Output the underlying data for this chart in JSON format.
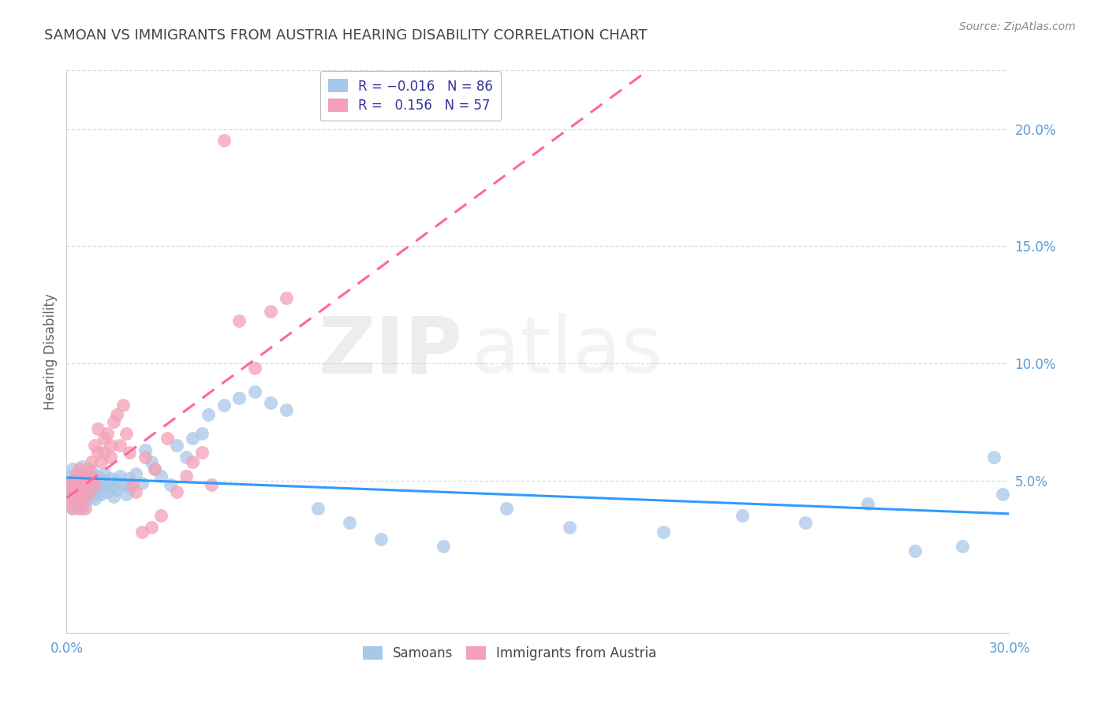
{
  "title": "SAMOAN VS IMMIGRANTS FROM AUSTRIA HEARING DISABILITY CORRELATION CHART",
  "source": "Source: ZipAtlas.com",
  "ylabel": "Hearing Disability",
  "right_ytick_labels": [
    "20.0%",
    "15.0%",
    "10.0%",
    "5.0%"
  ],
  "right_ytick_vals": [
    0.2,
    0.15,
    0.1,
    0.05
  ],
  "xlim": [
    0.0,
    0.3
  ],
  "ylim": [
    -0.015,
    0.225
  ],
  "samoans_color": "#a8c8e8",
  "austria_color": "#f4a0b8",
  "samoans_line_color": "#3399ff",
  "austria_line_color": "#ff6699",
  "samoans_R": -0.016,
  "samoans_N": 86,
  "austria_R": 0.156,
  "austria_N": 57,
  "legend_label_samoans": "Samoans",
  "legend_label_austria": "Immigrants from Austria",
  "watermark_zip": "ZIP",
  "watermark_atlas": "atlas",
  "background_color": "#ffffff",
  "grid_color": "#dddddd",
  "title_color": "#444444",
  "axis_label_color": "#5b9bd5",
  "ylabel_color": "#666666",
  "samoans_x": [
    0.001,
    0.001,
    0.001,
    0.002,
    0.002,
    0.002,
    0.002,
    0.002,
    0.003,
    0.003,
    0.003,
    0.003,
    0.003,
    0.004,
    0.004,
    0.004,
    0.004,
    0.005,
    0.005,
    0.005,
    0.005,
    0.005,
    0.006,
    0.006,
    0.006,
    0.006,
    0.007,
    0.007,
    0.007,
    0.008,
    0.008,
    0.008,
    0.008,
    0.009,
    0.009,
    0.009,
    0.01,
    0.01,
    0.01,
    0.011,
    0.011,
    0.012,
    0.012,
    0.013,
    0.013,
    0.014,
    0.015,
    0.015,
    0.016,
    0.016,
    0.017,
    0.018,
    0.019,
    0.02,
    0.02,
    0.022,
    0.024,
    0.025,
    0.027,
    0.028,
    0.03,
    0.033,
    0.035,
    0.038,
    0.04,
    0.043,
    0.045,
    0.05,
    0.055,
    0.06,
    0.065,
    0.07,
    0.08,
    0.09,
    0.1,
    0.12,
    0.14,
    0.16,
    0.19,
    0.215,
    0.235,
    0.255,
    0.27,
    0.285,
    0.295,
    0.298
  ],
  "samoans_y": [
    0.048,
    0.052,
    0.044,
    0.05,
    0.046,
    0.042,
    0.038,
    0.055,
    0.047,
    0.043,
    0.051,
    0.049,
    0.045,
    0.053,
    0.041,
    0.048,
    0.044,
    0.05,
    0.046,
    0.042,
    0.056,
    0.038,
    0.049,
    0.045,
    0.052,
    0.041,
    0.048,
    0.044,
    0.051,
    0.047,
    0.043,
    0.05,
    0.054,
    0.046,
    0.042,
    0.049,
    0.045,
    0.052,
    0.048,
    0.044,
    0.05,
    0.047,
    0.053,
    0.049,
    0.045,
    0.051,
    0.047,
    0.043,
    0.05,
    0.046,
    0.052,
    0.048,
    0.044,
    0.051,
    0.047,
    0.053,
    0.049,
    0.063,
    0.058,
    0.055,
    0.052,
    0.048,
    0.065,
    0.06,
    0.068,
    0.07,
    0.078,
    0.082,
    0.085,
    0.088,
    0.083,
    0.08,
    0.038,
    0.032,
    0.025,
    0.022,
    0.038,
    0.03,
    0.028,
    0.035,
    0.032,
    0.04,
    0.02,
    0.022,
    0.06,
    0.044
  ],
  "austria_x": [
    0.001,
    0.001,
    0.002,
    0.002,
    0.002,
    0.003,
    0.003,
    0.003,
    0.003,
    0.004,
    0.004,
    0.004,
    0.005,
    0.005,
    0.005,
    0.006,
    0.006,
    0.006,
    0.007,
    0.007,
    0.007,
    0.008,
    0.008,
    0.009,
    0.009,
    0.01,
    0.01,
    0.011,
    0.012,
    0.012,
    0.013,
    0.014,
    0.014,
    0.015,
    0.016,
    0.017,
    0.018,
    0.019,
    0.02,
    0.021,
    0.022,
    0.024,
    0.025,
    0.027,
    0.028,
    0.03,
    0.032,
    0.035,
    0.038,
    0.04,
    0.043,
    0.046,
    0.05,
    0.055,
    0.06,
    0.065,
    0.07
  ],
  "austria_y": [
    0.048,
    0.042,
    0.05,
    0.045,
    0.038,
    0.052,
    0.046,
    0.042,
    0.048,
    0.055,
    0.044,
    0.038,
    0.05,
    0.046,
    0.042,
    0.052,
    0.048,
    0.038,
    0.055,
    0.05,
    0.044,
    0.058,
    0.052,
    0.065,
    0.048,
    0.062,
    0.072,
    0.058,
    0.068,
    0.062,
    0.07,
    0.065,
    0.06,
    0.075,
    0.078,
    0.065,
    0.082,
    0.07,
    0.062,
    0.048,
    0.045,
    0.028,
    0.06,
    0.03,
    0.055,
    0.035,
    0.068,
    0.045,
    0.052,
    0.058,
    0.062,
    0.048,
    0.195,
    0.118,
    0.098,
    0.122,
    0.128
  ]
}
